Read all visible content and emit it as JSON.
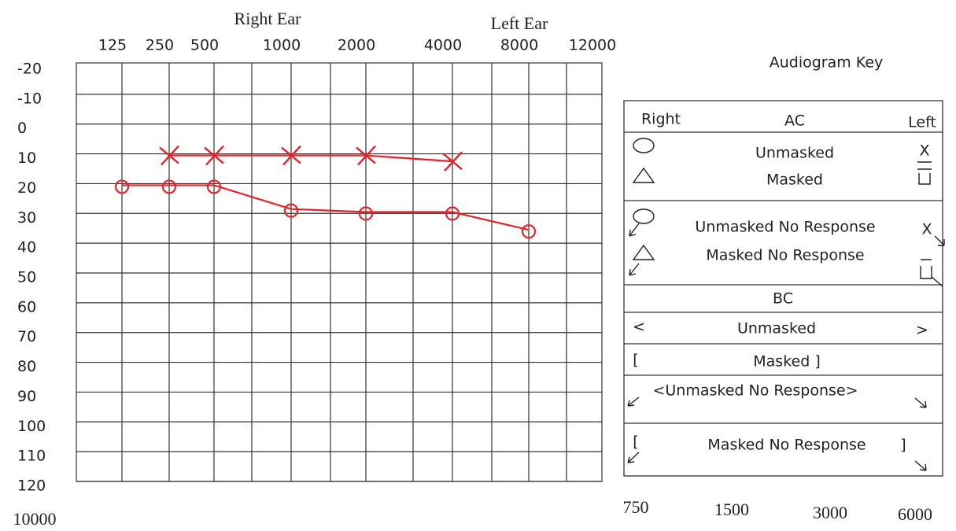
{
  "chart_data": {
    "type": "line",
    "categories": [
      "125",
      "250",
      "500",
      "1000",
      "2000",
      "4000",
      "8000",
      "12000"
    ],
    "series": [
      {
        "name": "Right Ear",
        "color": "#e3242b",
        "marker": "o",
        "values": [
          20,
          20,
          20,
          28,
          29,
          29,
          35,
          null
        ]
      },
      {
        "name": "Left Ear",
        "color": "#e3242b",
        "marker": "x",
        "values": [
          null,
          10,
          10,
          10,
          10,
          12,
          null,
          null
        ]
      }
    ],
    "ylim": [
      -20,
      120
    ],
    "yticks": [
      -20,
      -10,
      0,
      10,
      20,
      30,
      40,
      50,
      60,
      70,
      80,
      90,
      100,
      110,
      120
    ],
    "y_inverted": true,
    "grid": true
  },
  "key": {
    "title": "Audiogram Key",
    "ac": {
      "right": "Right",
      "title": "AC",
      "left": "Left",
      "unmasked": "Unmasked",
      "masked": "Masked",
      "left_unmasked": "X",
      "unmasked_nr": "Unmasked No Response",
      "masked_nr": "Masked No Response",
      "left_unmasked_nr": "X"
    },
    "bc": {
      "title": "BC",
      "unmasked_right": "<",
      "unmasked": "Unmasked",
      "unmasked_left": ">",
      "masked_right": "[",
      "masked": "Masked ]",
      "unmasked_nr": "<Unmasked No Response>",
      "masked_nr_right": "[",
      "masked_nr": "Masked No Response",
      "masked_nr_left": "]"
    }
  },
  "annotations": {
    "bottom_left": 10000,
    "bottom_right": [
      750,
      1500,
      3000,
      6000
    ]
  }
}
